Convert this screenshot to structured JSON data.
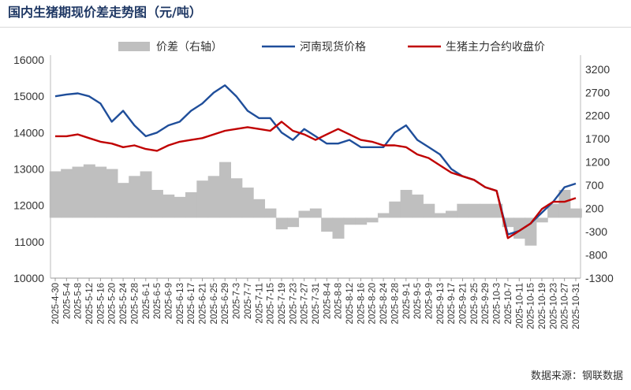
{
  "page": {
    "title": "国内生猪期现价差走势图（元/吨）",
    "source": "数据来源：钢联数据"
  },
  "colors": {
    "spread": "#bfbfbf",
    "spot": "#1f4e9a",
    "futures": "#c00000",
    "title": "#1f3864"
  },
  "chart_data": {
    "type": "line",
    "title": "国内生猪期现价差走势图（元/吨）",
    "legend": {
      "placement": "top",
      "entries": [
        "价差（右轴）",
        "河南现货价格",
        "生猪主力合约收盘价"
      ]
    },
    "ylim_left": [
      10000,
      16000
    ],
    "yticks_left": [
      10000,
      11000,
      12000,
      13000,
      14000,
      15000,
      16000
    ],
    "ylim_right": [
      -1300,
      3400
    ],
    "yticks_right": [
      -1300,
      -800,
      -300,
      200,
      700,
      1200,
      1700,
      2200,
      2700,
      3200
    ],
    "x": [
      "2025-4-30",
      "2025-5-4",
      "2025-5-8",
      "2025-5-12",
      "2025-5-16",
      "2025-5-20",
      "2025-5-24",
      "2025-5-28",
      "2025-6-1",
      "2025-6-5",
      "2025-6-9",
      "2025-6-13",
      "2025-6-17",
      "2025-6-21",
      "2025-6-25",
      "2025-6-29",
      "2025-7-3",
      "2025-7-7",
      "2025-7-11",
      "2025-7-15",
      "2025-7-19",
      "2025-7-23",
      "2025-7-27",
      "2025-7-31",
      "2025-8-4",
      "2025-8-8",
      "2025-8-12",
      "2025-8-16",
      "2025-8-20",
      "2025-8-24",
      "2025-8-28",
      "2025-9-1",
      "2025-9-5",
      "2025-9-9",
      "2025-9-13",
      "2025-9-17",
      "2025-9-21",
      "2025-9-25",
      "2025-9-29",
      "2025-10-3",
      "2025-10-7",
      "2025-10-11",
      "2025-10-15",
      "2025-10-19",
      "2025-10-23",
      "2025-10-27",
      "2025-10-31"
    ],
    "series": [
      {
        "name": "价差（右轴）",
        "axis": "right",
        "kind": "area",
        "values": [
          1000,
          1050,
          1100,
          1150,
          1100,
          1050,
          750,
          900,
          1000,
          600,
          500,
          450,
          550,
          800,
          900,
          1200,
          850,
          650,
          400,
          200,
          -250,
          -200,
          150,
          200,
          -300,
          -450,
          -150,
          -150,
          -100,
          100,
          350,
          600,
          500,
          300,
          100,
          150,
          300,
          300,
          300,
          300,
          -200,
          -450,
          -600,
          -100,
          300,
          600,
          200
        ]
      },
      {
        "name": "河南现货价格",
        "axis": "left",
        "kind": "line",
        "values": [
          15000,
          15050,
          15080,
          15000,
          14800,
          14300,
          14600,
          14200,
          13900,
          14000,
          14200,
          14300,
          14600,
          14800,
          15100,
          15300,
          15000,
          14600,
          14400,
          14400,
          14000,
          13800,
          14100,
          13900,
          13700,
          13700,
          13800,
          13600,
          13600,
          13600,
          14000,
          14200,
          13800,
          13600,
          13400,
          13000,
          12800,
          12700,
          12500,
          12400,
          11200,
          11300,
          11500,
          11800,
          12100,
          12500,
          12600
        ]
      },
      {
        "name": "生猪主力合约收盘价",
        "axis": "left",
        "kind": "line",
        "values": [
          13900,
          13900,
          13950,
          13850,
          13750,
          13700,
          13600,
          13650,
          13550,
          13500,
          13650,
          13750,
          13800,
          13850,
          13950,
          14050,
          14100,
          14150,
          14100,
          14050,
          14300,
          14050,
          13950,
          13800,
          13950,
          14100,
          13950,
          13800,
          13750,
          13650,
          13650,
          13600,
          13400,
          13300,
          13100,
          12900,
          12800,
          12700,
          12500,
          12400,
          11100,
          11300,
          11500,
          11900,
          12100,
          12100,
          12200
        ]
      }
    ]
  }
}
